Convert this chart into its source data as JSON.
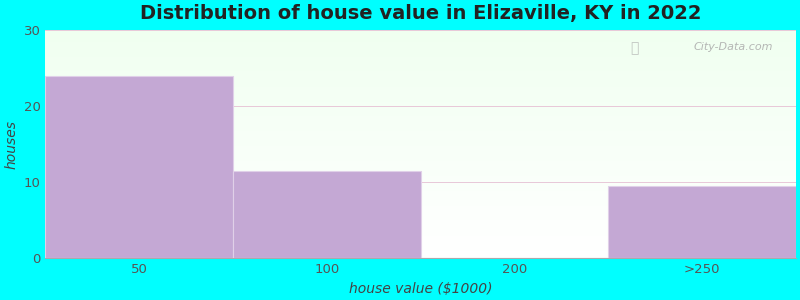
{
  "title": "Distribution of house value in Elizaville, KY in 2022",
  "xlabel": "house value ($1000)",
  "ylabel": "houses",
  "categories": [
    "50",
    "100",
    "200",
    ">250"
  ],
  "values": [
    24,
    11.5,
    0,
    9.5
  ],
  "bar_color": "#c4a8d4",
  "bar_edgecolor": "#e0d0e8",
  "background_color": "#00FFFF",
  "ylim": [
    0,
    30
  ],
  "yticks": [
    0,
    10,
    20,
    30
  ],
  "title_fontsize": 14,
  "label_fontsize": 10,
  "tick_fontsize": 9.5,
  "grid_color": "#e8c8d8",
  "watermark": "City-Data.com"
}
